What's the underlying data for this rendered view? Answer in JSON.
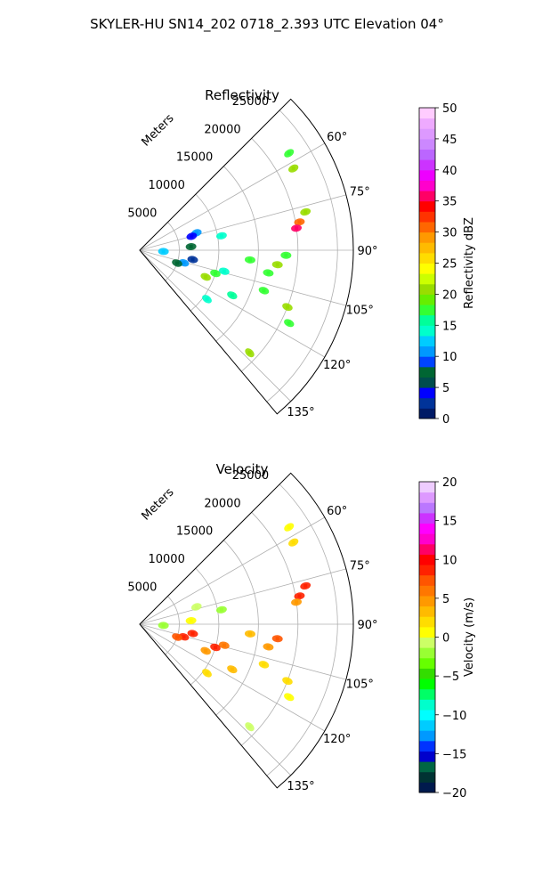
{
  "figure": {
    "title": "SKYLER-HU  SN14_202  0718_2.393 UTC Elevation 04°"
  },
  "chart_data": [
    {
      "type": "heatmap",
      "title": "Reflectivity",
      "polar": {
        "range_unit_label": "Meters",
        "azimuth_range_deg": [
          45,
          140
        ],
        "range_max_m": 27000,
        "range_ticks": [
          5000,
          10000,
          15000,
          20000,
          25000
        ],
        "range_tick_labels": [
          "5000",
          "10000",
          "15000",
          "20000",
          "25000"
        ],
        "azimuth_ticks": [
          60,
          75,
          90,
          105,
          120,
          135
        ],
        "azimuth_tick_labels": [
          "60°",
          "75°",
          "90°",
          "105°",
          "120°",
          "135°"
        ],
        "grid": true
      },
      "colorbar": {
        "label": "Reflectivity dBZ",
        "min": 0,
        "max": 50,
        "ticks": [
          0,
          5,
          10,
          15,
          20,
          25,
          30,
          35,
          40,
          45,
          50
        ],
        "tick_labels": [
          "0",
          "5",
          "10",
          "15",
          "20",
          "25",
          "30",
          "35",
          "40",
          "45",
          "50"
        ],
        "colormap": "NWS reflectivity"
      },
      "echoes": [
        {
          "azimuth_deg": 57,
          "range_m": 22500,
          "value": 18
        },
        {
          "azimuth_deg": 62,
          "range_m": 22000,
          "value": 20
        },
        {
          "azimuth_deg": 73,
          "range_m": 7500,
          "value": 10
        },
        {
          "azimuth_deg": 75,
          "range_m": 6800,
          "value": 4
        },
        {
          "azimuth_deg": 80,
          "range_m": 10500,
          "value": 14
        },
        {
          "azimuth_deg": 77,
          "range_m": 21500,
          "value": 20
        },
        {
          "azimuth_deg": 80,
          "range_m": 20500,
          "value": 30
        },
        {
          "azimuth_deg": 82,
          "range_m": 20000,
          "value": 36
        },
        {
          "azimuth_deg": 86,
          "range_m": 6500,
          "value": 8
        },
        {
          "azimuth_deg": 93,
          "range_m": 3000,
          "value": 12
        },
        {
          "azimuth_deg": 95,
          "range_m": 14000,
          "value": 18
        },
        {
          "azimuth_deg": 92,
          "range_m": 18500,
          "value": 18
        },
        {
          "azimuth_deg": 96,
          "range_m": 17500,
          "value": 20
        },
        {
          "azimuth_deg": 100,
          "range_m": 16500,
          "value": 18
        },
        {
          "azimuth_deg": 100,
          "range_m": 6800,
          "value": 3
        },
        {
          "azimuth_deg": 106,
          "range_m": 5800,
          "value": 10
        },
        {
          "azimuth_deg": 109,
          "range_m": 5000,
          "value": 8
        },
        {
          "azimuth_deg": 104,
          "range_m": 11000,
          "value": 14
        },
        {
          "azimuth_deg": 107,
          "range_m": 10000,
          "value": 18
        },
        {
          "azimuth_deg": 112,
          "range_m": 9000,
          "value": 20
        },
        {
          "azimuth_deg": 108,
          "range_m": 16500,
          "value": 18
        },
        {
          "azimuth_deg": 116,
          "range_m": 13000,
          "value": 16
        },
        {
          "azimuth_deg": 111,
          "range_m": 20000,
          "value": 20
        },
        {
          "azimuth_deg": 116,
          "range_m": 21000,
          "value": 18
        },
        {
          "azimuth_deg": 126,
          "range_m": 10500,
          "value": 14
        },
        {
          "azimuth_deg": 133,
          "range_m": 19000,
          "value": 20
        }
      ]
    },
    {
      "type": "heatmap",
      "title": "Velocity",
      "polar": {
        "range_unit_label": "Meters",
        "azimuth_range_deg": [
          45,
          140
        ],
        "range_max_m": 27000,
        "range_ticks": [
          5000,
          10000,
          15000,
          20000,
          25000
        ],
        "range_tick_labels": [
          "5000",
          "10000",
          "15000",
          "20000",
          "25000"
        ],
        "azimuth_ticks": [
          60,
          75,
          90,
          105,
          120,
          135
        ],
        "azimuth_tick_labels": [
          "60°",
          "75°",
          "90°",
          "105°",
          "120°",
          "135°"
        ],
        "grid": true
      },
      "colorbar": {
        "label": "Velocity (m/s)",
        "min": -20,
        "max": 20,
        "ticks": [
          -20,
          -15,
          -10,
          -5,
          0,
          5,
          10,
          15,
          20
        ],
        "tick_labels": [
          "−20",
          "−15",
          "−10",
          "−5",
          "0",
          "5",
          "10",
          "15",
          "20"
        ],
        "colormap": "NWS velocity"
      },
      "echoes": [
        {
          "azimuth_deg": 57,
          "range_m": 22500,
          "value": 1
        },
        {
          "azimuth_deg": 62,
          "range_m": 22000,
          "value": 2
        },
        {
          "azimuth_deg": 73,
          "range_m": 7500,
          "value": -1
        },
        {
          "azimuth_deg": 80,
          "range_m": 10500,
          "value": -2
        },
        {
          "azimuth_deg": 77,
          "range_m": 21500,
          "value": 8
        },
        {
          "azimuth_deg": 80,
          "range_m": 20500,
          "value": 9
        },
        {
          "azimuth_deg": 82,
          "range_m": 20000,
          "value": 4
        },
        {
          "azimuth_deg": 86,
          "range_m": 6500,
          "value": 1
        },
        {
          "azimuth_deg": 93,
          "range_m": 3000,
          "value": -2
        },
        {
          "azimuth_deg": 95,
          "range_m": 14000,
          "value": 3
        },
        {
          "azimuth_deg": 96,
          "range_m": 17500,
          "value": 7
        },
        {
          "azimuth_deg": 100,
          "range_m": 16500,
          "value": 5
        },
        {
          "azimuth_deg": 100,
          "range_m": 6800,
          "value": 9
        },
        {
          "azimuth_deg": 106,
          "range_m": 5800,
          "value": 9
        },
        {
          "azimuth_deg": 109,
          "range_m": 5000,
          "value": 7
        },
        {
          "azimuth_deg": 104,
          "range_m": 11000,
          "value": 6
        },
        {
          "azimuth_deg": 107,
          "range_m": 10000,
          "value": 8
        },
        {
          "azimuth_deg": 112,
          "range_m": 9000,
          "value": 4
        },
        {
          "azimuth_deg": 108,
          "range_m": 16500,
          "value": 2
        },
        {
          "azimuth_deg": 116,
          "range_m": 13000,
          "value": 3
        },
        {
          "azimuth_deg": 111,
          "range_m": 20000,
          "value": 2
        },
        {
          "azimuth_deg": 116,
          "range_m": 21000,
          "value": 1
        },
        {
          "azimuth_deg": 126,
          "range_m": 10500,
          "value": 2
        },
        {
          "azimuth_deg": 133,
          "range_m": 19000,
          "value": -1
        }
      ]
    }
  ]
}
